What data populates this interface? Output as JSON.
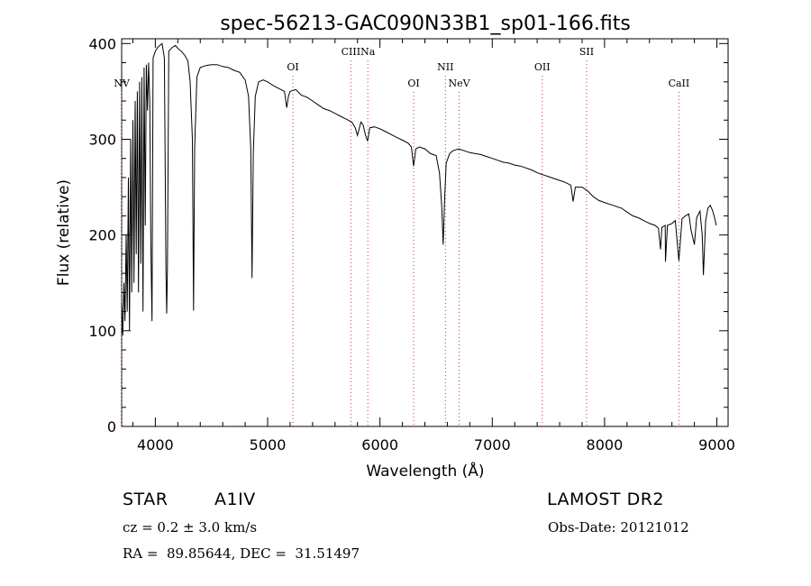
{
  "chart_data": {
    "type": "line",
    "title": "spec-56213-GAC090N33B1_sp01-166.fits",
    "xlabel": "Wavelength (Å)",
    "ylabel": "Flux (relative)",
    "xlim": [
      3700,
      9100
    ],
    "ylim": [
      0,
      405
    ],
    "x_ticks": [
      4000,
      5000,
      6000,
      7000,
      8000,
      9000
    ],
    "y_ticks": [
      0,
      100,
      200,
      300,
      400
    ],
    "line_color": "#000000",
    "marker_color": "#cc3333",
    "series": [
      {
        "points": [
          [
            3700,
            130
          ],
          [
            3710,
            95
          ],
          [
            3720,
            150
          ],
          [
            3730,
            110
          ],
          [
            3740,
            200
          ],
          [
            3750,
            120
          ],
          [
            3760,
            260
          ],
          [
            3770,
            100
          ],
          [
            3780,
            300
          ],
          [
            3790,
            140
          ],
          [
            3800,
            320
          ],
          [
            3810,
            150
          ],
          [
            3820,
            340
          ],
          [
            3830,
            180
          ],
          [
            3840,
            350
          ],
          [
            3850,
            140
          ],
          [
            3860,
            360
          ],
          [
            3870,
            170
          ],
          [
            3880,
            365
          ],
          [
            3890,
            120
          ],
          [
            3900,
            375
          ],
          [
            3910,
            210
          ],
          [
            3920,
            378
          ],
          [
            3930,
            330
          ],
          [
            3940,
            380
          ],
          [
            3950,
            340
          ],
          [
            3960,
            190
          ],
          [
            3970,
            110
          ],
          [
            3980,
            385
          ],
          [
            4000,
            392
          ],
          [
            4020,
            396
          ],
          [
            4040,
            398
          ],
          [
            4060,
            400
          ],
          [
            4080,
            385
          ],
          [
            4095,
            160
          ],
          [
            4101,
            118
          ],
          [
            4108,
            165
          ],
          [
            4120,
            392
          ],
          [
            4150,
            396
          ],
          [
            4180,
            398
          ],
          [
            4200,
            395
          ],
          [
            4230,
            392
          ],
          [
            4260,
            388
          ],
          [
            4290,
            382
          ],
          [
            4310,
            360
          ],
          [
            4330,
            300
          ],
          [
            4340,
            121
          ],
          [
            4350,
            290
          ],
          [
            4370,
            365
          ],
          [
            4400,
            375
          ],
          [
            4450,
            377
          ],
          [
            4500,
            378
          ],
          [
            4550,
            378
          ],
          [
            4600,
            376
          ],
          [
            4650,
            375
          ],
          [
            4700,
            372
          ],
          [
            4750,
            370
          ],
          [
            4800,
            362
          ],
          [
            4830,
            345
          ],
          [
            4850,
            290
          ],
          [
            4861,
            155
          ],
          [
            4872,
            285
          ],
          [
            4890,
            345
          ],
          [
            4920,
            360
          ],
          [
            4960,
            362
          ],
          [
            5000,
            360
          ],
          [
            5050,
            356
          ],
          [
            5100,
            353
          ],
          [
            5150,
            350
          ],
          [
            5170,
            333
          ],
          [
            5185,
            345
          ],
          [
            5200,
            350
          ],
          [
            5250,
            352
          ],
          [
            5300,
            346
          ],
          [
            5350,
            344
          ],
          [
            5400,
            340
          ],
          [
            5450,
            336
          ],
          [
            5500,
            332
          ],
          [
            5550,
            330
          ],
          [
            5600,
            327
          ],
          [
            5650,
            324
          ],
          [
            5700,
            321
          ],
          [
            5750,
            318
          ],
          [
            5780,
            312
          ],
          [
            5800,
            304
          ],
          [
            5830,
            318
          ],
          [
            5850,
            315
          ],
          [
            5870,
            305
          ],
          [
            5890,
            298
          ],
          [
            5910,
            312
          ],
          [
            5950,
            313
          ],
          [
            6000,
            311
          ],
          [
            6050,
            308
          ],
          [
            6100,
            305
          ],
          [
            6150,
            302
          ],
          [
            6200,
            299
          ],
          [
            6250,
            296
          ],
          [
            6280,
            292
          ],
          [
            6300,
            272
          ],
          [
            6320,
            290
          ],
          [
            6350,
            292
          ],
          [
            6400,
            290
          ],
          [
            6450,
            285
          ],
          [
            6500,
            283
          ],
          [
            6530,
            265
          ],
          [
            6550,
            230
          ],
          [
            6563,
            190
          ],
          [
            6575,
            235
          ],
          [
            6590,
            275
          ],
          [
            6620,
            285
          ],
          [
            6650,
            288
          ],
          [
            6700,
            290
          ],
          [
            6750,
            288
          ],
          [
            6800,
            286
          ],
          [
            6850,
            285
          ],
          [
            6900,
            284
          ],
          [
            6950,
            282
          ],
          [
            7000,
            280
          ],
          [
            7050,
            278
          ],
          [
            7100,
            276
          ],
          [
            7150,
            275
          ],
          [
            7200,
            273
          ],
          [
            7250,
            272
          ],
          [
            7300,
            270
          ],
          [
            7350,
            268
          ],
          [
            7400,
            265
          ],
          [
            7450,
            263
          ],
          [
            7500,
            261
          ],
          [
            7550,
            259
          ],
          [
            7600,
            257
          ],
          [
            7650,
            255
          ],
          [
            7700,
            252
          ],
          [
            7720,
            235
          ],
          [
            7740,
            250
          ],
          [
            7800,
            250
          ],
          [
            7850,
            246
          ],
          [
            7900,
            240
          ],
          [
            7950,
            236
          ],
          [
            8000,
            234
          ],
          [
            8050,
            232
          ],
          [
            8100,
            230
          ],
          [
            8150,
            228
          ],
          [
            8200,
            224
          ],
          [
            8250,
            220
          ],
          [
            8300,
            218
          ],
          [
            8350,
            215
          ],
          [
            8400,
            212
          ],
          [
            8450,
            210
          ],
          [
            8480,
            207
          ],
          [
            8498,
            185
          ],
          [
            8510,
            208
          ],
          [
            8540,
            210
          ],
          [
            8542,
            172
          ],
          [
            8560,
            210
          ],
          [
            8600,
            212
          ],
          [
            8630,
            215
          ],
          [
            8662,
            173
          ],
          [
            8690,
            217
          ],
          [
            8720,
            220
          ],
          [
            8750,
            222
          ],
          [
            8770,
            205
          ],
          [
            8800,
            190
          ],
          [
            8820,
            218
          ],
          [
            8850,
            225
          ],
          [
            8870,
            200
          ],
          [
            8880,
            158
          ],
          [
            8900,
            215
          ],
          [
            8920,
            228
          ],
          [
            8940,
            231
          ],
          [
            8960,
            226
          ],
          [
            8980,
            218
          ],
          [
            8995,
            210
          ]
        ]
      }
    ],
    "lines": [
      {
        "name": "NV",
        "wavelength": 3700,
        "row": "low"
      },
      {
        "name": "OI",
        "wavelength": 5225,
        "row": "mid"
      },
      {
        "name": "CIII",
        "wavelength": 5741,
        "row": "high"
      },
      {
        "name": "Na",
        "wavelength": 5892,
        "row": "high"
      },
      {
        "name": "OI",
        "wavelength": 6300,
        "row": "low"
      },
      {
        "name": "NII",
        "wavelength": 6583,
        "row": "mid"
      },
      {
        "name": "NeV",
        "wavelength": 6705,
        "row": "low"
      },
      {
        "name": "OII",
        "wavelength": 7445,
        "row": "mid"
      },
      {
        "name": "SII",
        "wavelength": 7840,
        "row": "high"
      },
      {
        "name": "CaII",
        "wavelength": 8662,
        "row": "low"
      }
    ]
  },
  "info": {
    "object_class": "STAR",
    "subclass": "A1IV",
    "survey": "LAMOST DR2",
    "redshift_text": "cz = 0.2 ± 3.0 km/s",
    "obs_date_text": "Obs-Date: 20121012",
    "coords_text": "RA =  89.85644, DEC =  31.51497"
  }
}
